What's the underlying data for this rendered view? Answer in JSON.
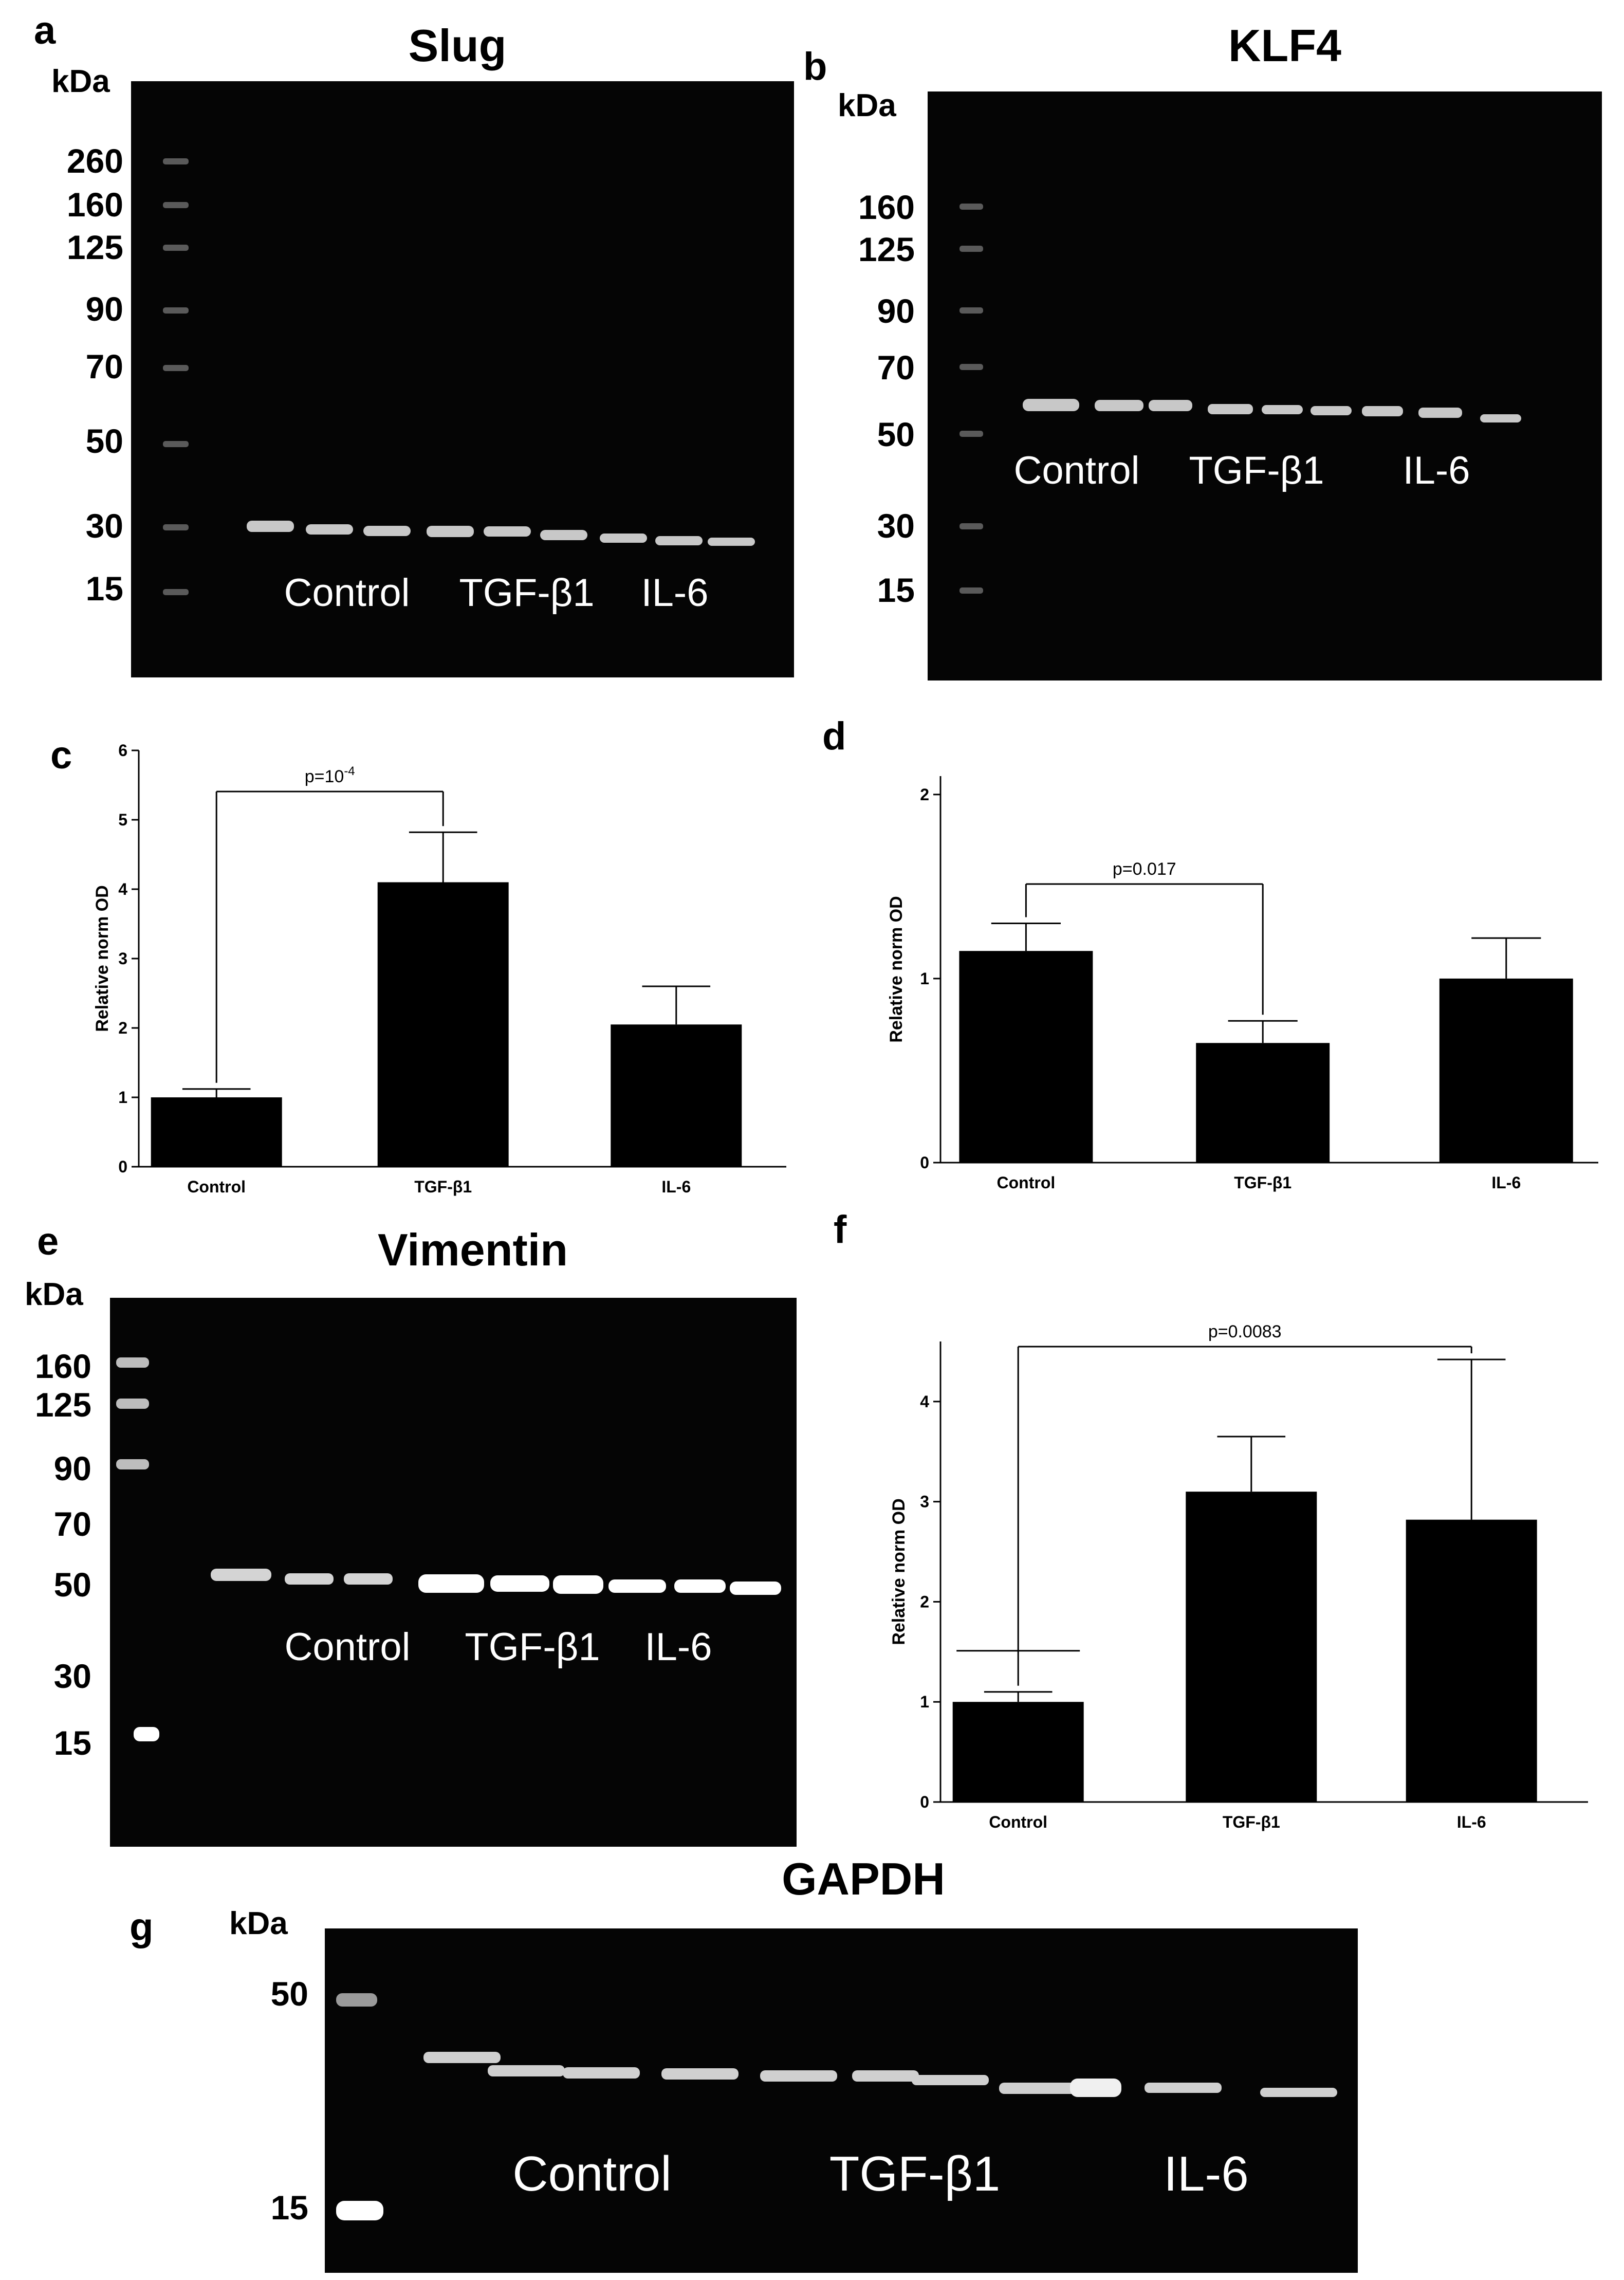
{
  "panels": {
    "a": {
      "letter": "a",
      "title": "Slug",
      "unit": "kDa",
      "markers": [
        "260",
        "160",
        "125",
        "90",
        "70",
        "50",
        "30",
        "15"
      ],
      "lane_groups": [
        "Control",
        "TGF-β1",
        "IL-6"
      ]
    },
    "b": {
      "letter": "b",
      "title": "KLF4",
      "unit": "kDa",
      "markers": [
        "160",
        "125",
        "90",
        "70",
        "50",
        "30",
        "15"
      ],
      "lane_groups": [
        "Control",
        "TGF-β1",
        "IL-6"
      ]
    },
    "c": {
      "letter": "c"
    },
    "d": {
      "letter": "d"
    },
    "e": {
      "letter": "e",
      "title": "Vimentin",
      "unit": "kDa",
      "markers": [
        "160",
        "125",
        "90",
        "70",
        "50",
        "30",
        "15"
      ],
      "lane_groups": [
        "Control",
        "TGF-β1",
        "IL-6"
      ]
    },
    "f": {
      "letter": "f"
    },
    "g": {
      "letter": "g",
      "title": "GAPDH",
      "unit": "kDa",
      "markers": [
        "50",
        "15"
      ],
      "lane_groups": [
        "Control",
        "TGF-β1",
        "IL-6"
      ]
    }
  },
  "chart_data": [
    {
      "panel": "c",
      "type": "bar",
      "categories": [
        "Control",
        "TGF-β1",
        "IL-6"
      ],
      "values": [
        1.0,
        4.1,
        2.05
      ],
      "errors": [
        0.12,
        0.72,
        0.55
      ],
      "ylabel": "Relative norm OD",
      "ylim": [
        0,
        6
      ],
      "yticks": [
        "0",
        "1",
        "2",
        "3",
        "4",
        "5",
        "6"
      ],
      "ytick_values": [
        0,
        1,
        2,
        3,
        4,
        5,
        6
      ],
      "annotation": {
        "text": "p=10",
        "superscript": "-4",
        "from": 0,
        "to": 1
      }
    },
    {
      "panel": "d",
      "type": "bar",
      "categories": [
        "Control",
        "TGF-β1",
        "IL-6"
      ],
      "values": [
        1.15,
        0.65,
        1.0
      ],
      "errors": [
        0.15,
        0.12,
        0.22
      ],
      "ylabel": "Relative norm OD",
      "ylim": [
        0,
        2.1
      ],
      "yticks": [
        "0",
        "1",
        "2"
      ],
      "ytick_values": [
        0,
        1,
        2
      ],
      "annotation": {
        "text": "p=0.017",
        "superscript": "",
        "from": 0,
        "to": 1
      }
    },
    {
      "panel": "f",
      "type": "bar",
      "categories": [
        "Control",
        "TGF-β1",
        "IL-6"
      ],
      "values": [
        1.0,
        3.1,
        2.82
      ],
      "errors": [
        0.1,
        0.55,
        1.6
      ],
      "ylabel": "Relative norm OD",
      "ylim": [
        0,
        4.6
      ],
      "yticks": [
        "0",
        "1",
        "2",
        "3",
        "4"
      ],
      "ytick_values": [
        0,
        1,
        2,
        3,
        4
      ],
      "annotation": {
        "text": "p=0.0083",
        "superscript": "",
        "from": 0,
        "to": 2
      }
    }
  ]
}
